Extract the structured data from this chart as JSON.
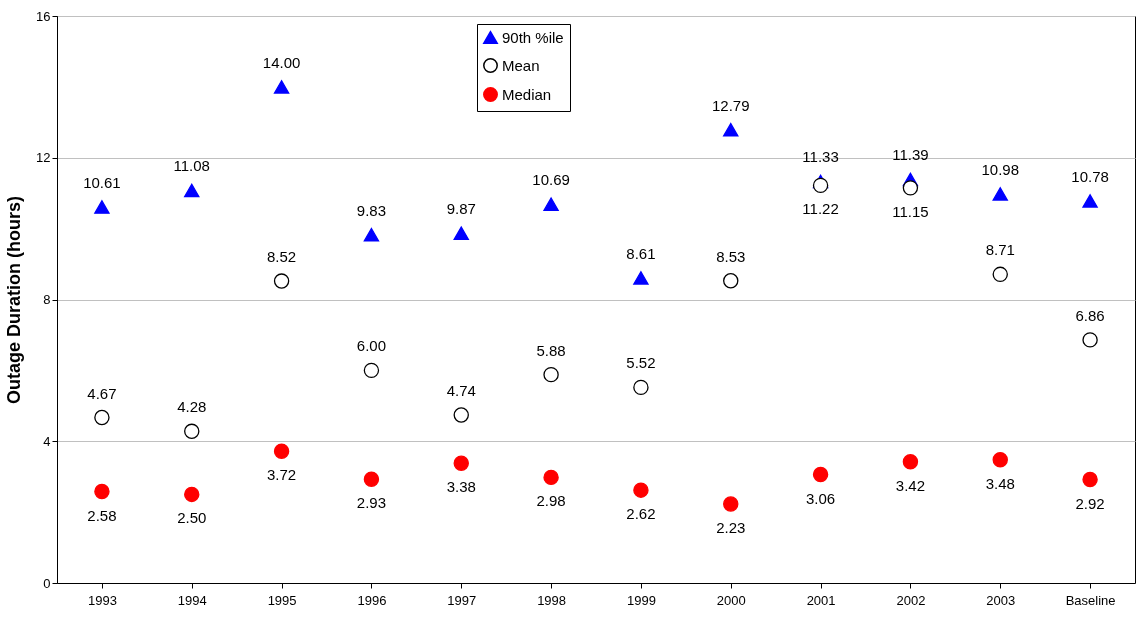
{
  "chart_data": {
    "type": "scatter",
    "ylabel": "Outage Duration (hours)",
    "categories": [
      "1993",
      "1994",
      "1995",
      "1996",
      "1997",
      "1998",
      "1999",
      "2000",
      "2001",
      "2002",
      "2003",
      "Baseline"
    ],
    "series": [
      {
        "name": "90th %ile",
        "color": "#0000ff",
        "marker": "triangle",
        "values": [
          10.61,
          11.08,
          14.0,
          9.83,
          9.87,
          10.69,
          8.61,
          12.79,
          11.33,
          11.39,
          10.98,
          10.78
        ],
        "value_labels": [
          "10.61",
          "11.08",
          "14.00",
          "9.83",
          "9.87",
          "10.69",
          "8.61",
          "12.79",
          "11.33",
          "11.39",
          "10.98",
          "10.78"
        ]
      },
      {
        "name": "Mean",
        "color": "#000000",
        "marker": "circle",
        "values": [
          4.67,
          4.28,
          8.52,
          6.0,
          4.74,
          5.88,
          5.52,
          8.53,
          11.22,
          11.15,
          8.71,
          6.86
        ],
        "value_labels": [
          "4.67",
          "4.28",
          "8.52",
          "6.00",
          "4.74",
          "5.88",
          "5.52",
          "8.53",
          "11.22",
          "11.15",
          "8.71",
          "6.86"
        ]
      },
      {
        "name": "Median",
        "color": "#ff0000",
        "marker": "circle",
        "values": [
          2.58,
          2.5,
          3.72,
          2.93,
          3.38,
          2.98,
          2.62,
          2.23,
          3.06,
          3.42,
          3.48,
          2.92
        ],
        "value_labels": [
          "2.58",
          "2.50",
          "3.72",
          "2.93",
          "3.38",
          "2.98",
          "2.62",
          "2.23",
          "3.06",
          "3.42",
          "3.48",
          "2.92"
        ]
      }
    ],
    "ylim": [
      0,
      16
    ],
    "yticks": [
      0,
      4,
      8,
      12,
      16
    ],
    "grid": "y",
    "legend": "top"
  }
}
